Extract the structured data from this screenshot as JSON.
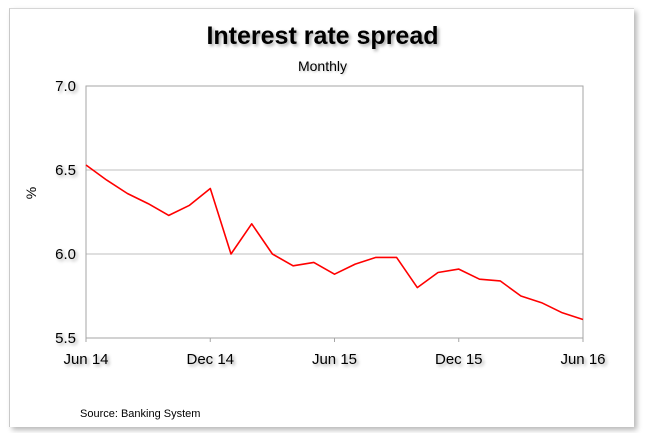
{
  "chart_data": {
    "type": "line",
    "title": "Interest rate spread",
    "subtitle": "Monthly",
    "ylabel": "%",
    "xlabel": "",
    "ylim": [
      5.5,
      7.0
    ],
    "yticks": [
      "5.5",
      "6.0",
      "6.5",
      "7.0"
    ],
    "xticks": [
      "Jun 14",
      "Dec 14",
      "Jun 15",
      "Dec 15",
      "Jun 16"
    ],
    "grid": true,
    "legend": "none",
    "line_color": "#ff0000",
    "source": "Source:  Banking System",
    "x": [
      "Jun 14",
      "Jul 14",
      "Aug 14",
      "Sep 14",
      "Oct 14",
      "Nov 14",
      "Dec 14",
      "Jan 15",
      "Feb 15",
      "Mar 15",
      "Apr 15",
      "May 15",
      "Jun 15",
      "Jul 15",
      "Aug 15",
      "Sep 15",
      "Oct 15",
      "Nov 15",
      "Dec 15",
      "Jan 16",
      "Feb 16",
      "Mar 16",
      "Apr 16",
      "May 16",
      "Jun 16"
    ],
    "series": [
      {
        "values": [
          6.53,
          6.44,
          6.36,
          6.3,
          6.23,
          6.29,
          6.39,
          6.0,
          6.18,
          6.0,
          5.93,
          5.95,
          5.88,
          5.94,
          5.98,
          5.98,
          5.8,
          5.89,
          5.91,
          5.85,
          5.84,
          5.75,
          5.71,
          5.65,
          5.61
        ]
      }
    ]
  }
}
